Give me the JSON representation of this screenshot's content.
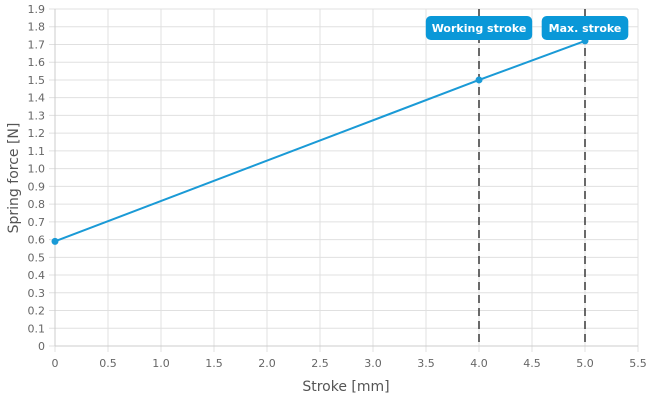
{
  "chart_data": {
    "type": "line",
    "xlabel": "Stroke [mm]",
    "ylabel": "Spring force [N]",
    "xlim": [
      0,
      5.5
    ],
    "ylim": [
      0,
      1.9
    ],
    "xticks": [
      0,
      0.5,
      1.0,
      1.5,
      2.0,
      2.5,
      3.0,
      3.5,
      4.0,
      4.5,
      5.0,
      5.5
    ],
    "yticks": [
      0,
      0.1,
      0.2,
      0.3,
      0.4,
      0.5,
      0.6,
      0.7,
      0.8,
      0.9,
      1.0,
      1.1,
      1.2,
      1.3,
      1.4,
      1.5,
      1.6,
      1.7,
      1.8,
      1.9
    ],
    "grid": true,
    "series": [
      {
        "x": [
          0,
          4.0,
          5.0
        ],
        "y": [
          0.59,
          1.5,
          1.72
        ],
        "color": "#1a9ad6"
      }
    ],
    "annotations": [
      {
        "label": "Working stroke",
        "x": 4.0
      },
      {
        "label": "Max. stroke",
        "x": 5.0
      }
    ],
    "colors": {
      "line": "#1a9ad6",
      "label_bg": "#0a98d8",
      "marker_line": "#444444",
      "grid": "#e0e0e0"
    }
  }
}
